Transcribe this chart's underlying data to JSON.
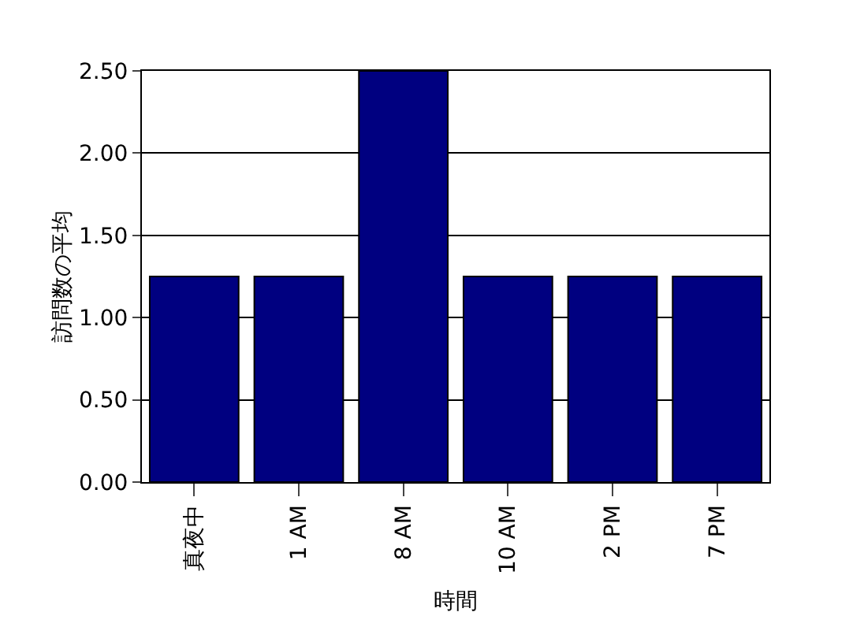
{
  "chart_data": {
    "type": "bar",
    "xlabel": "時間",
    "ylabel": "訪問数の平均",
    "categories": [
      "真夜中",
      "1 AM",
      "8 AM",
      "10 AM",
      "2 PM",
      "7 PM"
    ],
    "values": [
      1.25,
      1.25,
      2.5,
      1.25,
      1.25,
      1.25
    ],
    "color": "#000080",
    "ylim": [
      0,
      2.5
    ],
    "yticks": [
      {
        "value": 0,
        "label": "0.00"
      },
      {
        "value": 0.5,
        "label": "0.50"
      },
      {
        "value": 1,
        "label": "1.00"
      },
      {
        "value": 1.5,
        "label": "1.50"
      },
      {
        "value": 2,
        "label": "2.00"
      },
      {
        "value": 2.5,
        "label": "2.50"
      }
    ],
    "grid": "y"
  }
}
